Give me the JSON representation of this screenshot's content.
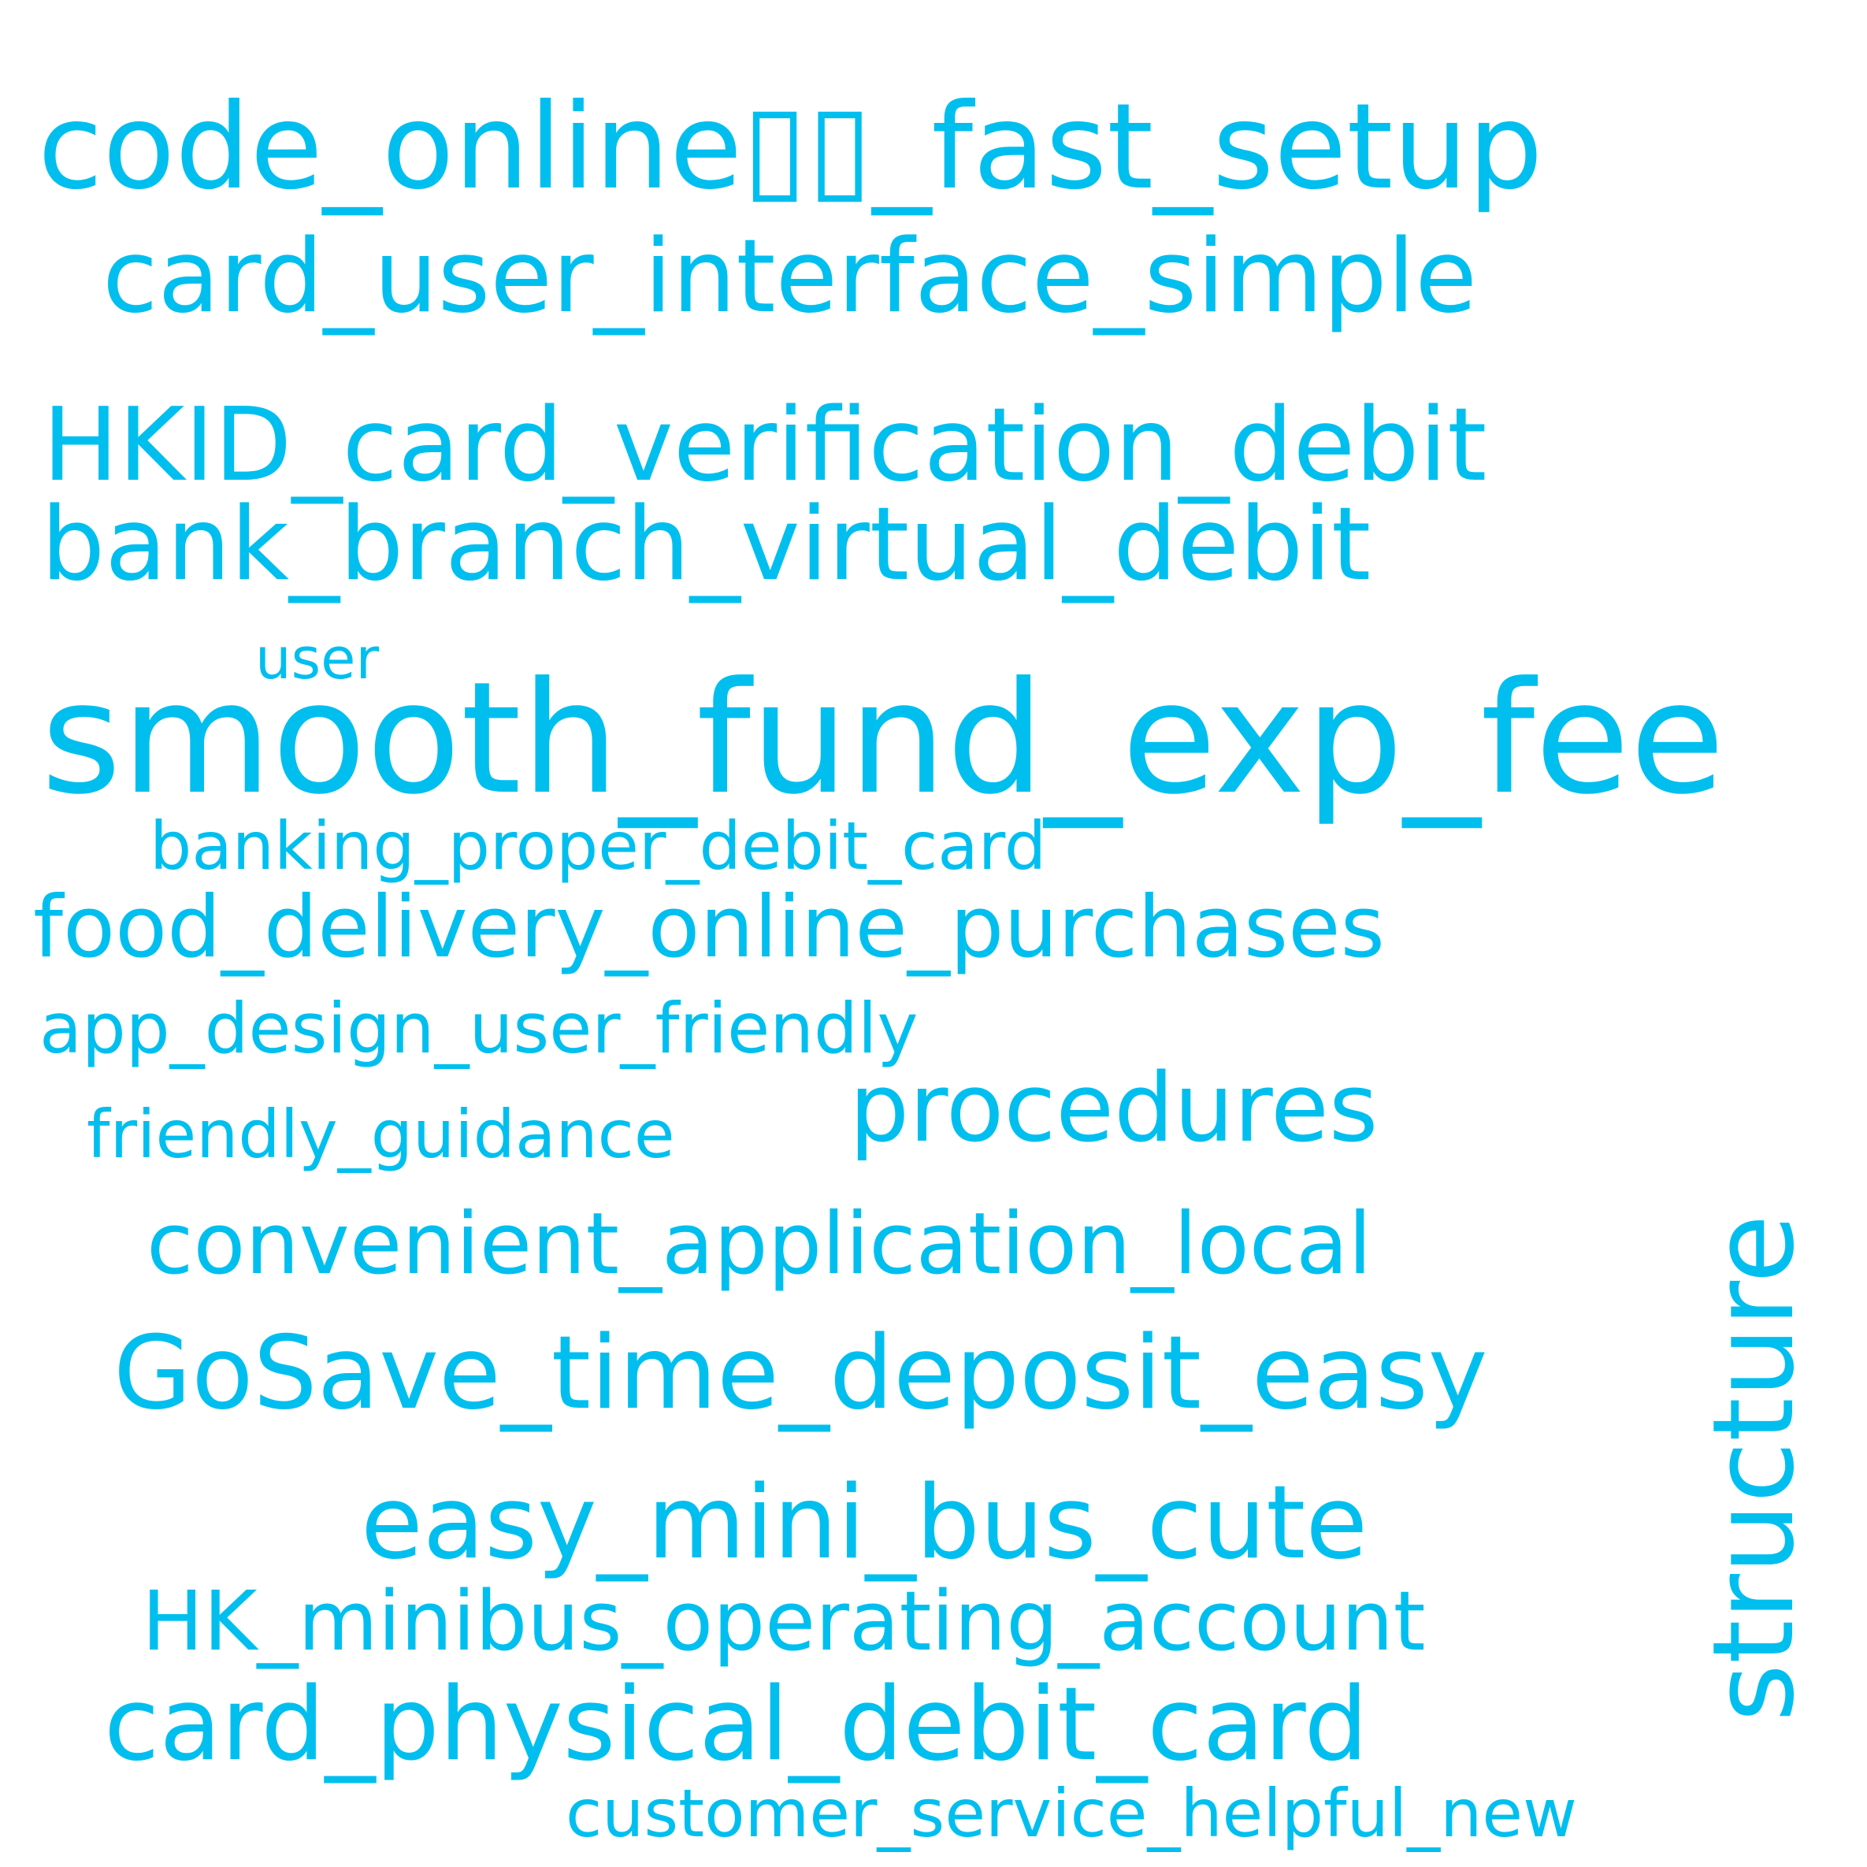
{
  "word_cloud": {
    "accent_color": "#00bfef",
    "background_color": "#ffffff",
    "words": [
      {
        "text": "code_online▯▯_fast_setup",
        "orientation": "horizontal"
      },
      {
        "text": "card_user_interface_simple",
        "orientation": "horizontal"
      },
      {
        "text": "HKID_card_verification_debit",
        "orientation": "horizontal"
      },
      {
        "text": "bank_branch_virtual_debit",
        "orientation": "horizontal"
      },
      {
        "text": "user",
        "orientation": "horizontal"
      },
      {
        "text": "smooth_fund_exp_fee",
        "orientation": "horizontal"
      },
      {
        "text": "banking_proper_debit_card",
        "orientation": "horizontal"
      },
      {
        "text": "food_delivery_online_purchases",
        "orientation": "horizontal"
      },
      {
        "text": "app_design_user_friendly",
        "orientation": "horizontal"
      },
      {
        "text": "friendly_guidance",
        "orientation": "horizontal"
      },
      {
        "text": "procedures",
        "orientation": "horizontal"
      },
      {
        "text": "convenient_application_local",
        "orientation": "horizontal"
      },
      {
        "text": "GoSave_time_deposit_easy",
        "orientation": "horizontal"
      },
      {
        "text": "easy_mini_bus_cute",
        "orientation": "horizontal"
      },
      {
        "text": "HK_minibus_operating_account",
        "orientation": "horizontal"
      },
      {
        "text": "card_physical_debit_card",
        "orientation": "horizontal"
      },
      {
        "text": "customer_service_helpful_new",
        "orientation": "horizontal"
      },
      {
        "text": "structure",
        "orientation": "vertical"
      }
    ]
  }
}
